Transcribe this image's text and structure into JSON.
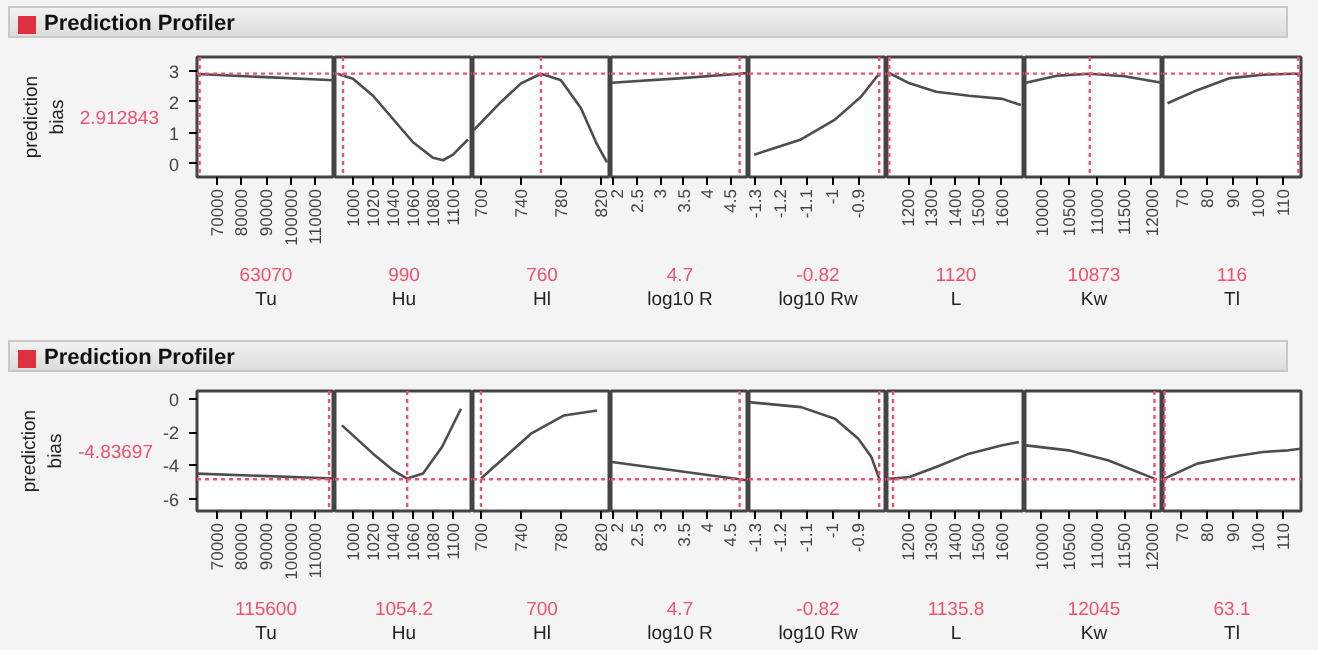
{
  "chart_data": [
    {
      "type": "line",
      "title": "Prediction Profiler",
      "ylabel": "prediction\nbias",
      "xlabel": "Tu",
      "color": "#4d4d4d",
      "x": [
        62000,
        90000,
        118000
      ],
      "values": [
        2.9,
        2.8,
        2.7
      ],
      "xlim": [
        62000,
        118000
      ],
      "xticks": [
        70000,
        80000,
        90000,
        100000,
        110000
      ],
      "ylim": [
        -0.42,
        3.45
      ],
      "yticks": [
        0,
        1,
        2,
        3
      ],
      "ref_lines": [
        {
          "axis": "y",
          "value": 2.912843,
          "label": "2.912843",
          "color": "#f0506e",
          "line_style": "dotted"
        },
        {
          "axis": "x",
          "value": 63070,
          "label": "63070",
          "color": "#f0506e",
          "line_style": "dotted"
        }
      ]
    },
    {
      "type": "line",
      "xlabel": "Hu",
      "color": "#4d4d4d",
      "x": [
        985,
        1000,
        1020,
        1040,
        1060,
        1080,
        1090,
        1100,
        1115
      ],
      "values": [
        2.9,
        2.75,
        2.2,
        1.45,
        0.7,
        0.2,
        0.12,
        0.3,
        0.79
      ],
      "xlim": [
        982,
        1120
      ],
      "xticks": [
        1000,
        1020,
        1040,
        1060,
        1080,
        1100
      ],
      "ylim": [
        -0.42,
        3.45
      ],
      "yticks": [
        0,
        1,
        2,
        3
      ],
      "tick_labels": "x",
      "ref_lines": [
        {
          "axis": "y",
          "value": 2.912843,
          "color": "#f0506e",
          "line_style": "dotted"
        },
        {
          "axis": "x",
          "value": 990,
          "label": "990",
          "color": "#f0506e",
          "line_style": "dotted"
        }
      ]
    },
    {
      "type": "line",
      "xlabel": "Hl",
      "color": "#4d4d4d",
      "x": [
        693,
        720,
        740,
        760,
        780,
        800,
        815,
        826
      ],
      "values": [
        1.1,
        2.0,
        2.6,
        2.91,
        2.7,
        1.8,
        0.7,
        0.05
      ],
      "xlim": [
        692,
        830
      ],
      "xticks": [
        700,
        740,
        780,
        820
      ],
      "ylim": [
        -0.42,
        3.45
      ],
      "yticks": [
        0,
        1,
        2,
        3
      ],
      "tick_labels": "x",
      "ref_lines": [
        {
          "axis": "y",
          "value": 2.912843,
          "color": "#f0506e",
          "line_style": "dotted"
        },
        {
          "axis": "x",
          "value": 760,
          "label": "760",
          "color": "#f0506e",
          "line_style": "dotted"
        }
      ]
    },
    {
      "type": "line",
      "xlabel": "log10 R",
      "color": "#4d4d4d",
      "x": [
        1.96,
        3.4,
        4.7,
        4.85
      ],
      "values": [
        2.62,
        2.76,
        2.91,
        2.93
      ],
      "xlim": [
        1.95,
        4.9
      ],
      "xticks": [
        2,
        2.5,
        3,
        3.5,
        4,
        4.5
      ],
      "ylim": [
        -0.42,
        3.45
      ],
      "yticks": [
        0,
        1,
        2,
        3
      ],
      "tick_labels": "x",
      "ref_lines": [
        {
          "axis": "y",
          "value": 2.912843,
          "color": "#f0506e",
          "line_style": "dotted"
        },
        {
          "axis": "x",
          "value": 4.7,
          "label": "4.7",
          "color": "#f0506e",
          "line_style": "dotted"
        }
      ]
    },
    {
      "type": "line",
      "xlabel": "log10 Rw",
      "color": "#4d4d4d",
      "x": [
        -1.3,
        -1.12,
        -0.99,
        -0.89,
        -0.82
      ],
      "values": [
        0.3,
        0.79,
        1.43,
        2.17,
        2.91
      ],
      "xlim": [
        -1.32,
        -0.79
      ],
      "xticks": [
        -1.3,
        -1.2,
        -1.1,
        -1,
        -0.9
      ],
      "ylim": [
        -0.42,
        3.45
      ],
      "yticks": [
        0,
        1,
        2,
        3
      ],
      "tick_labels": "x",
      "ref_lines": [
        {
          "axis": "y",
          "value": 2.912843,
          "color": "#f0506e",
          "line_style": "dotted"
        },
        {
          "axis": "x",
          "value": -0.82,
          "label": "-0.82",
          "color": "#f0506e",
          "line_style": "dotted"
        }
      ]
    },
    {
      "type": "line",
      "xlabel": "L",
      "color": "#4d4d4d",
      "x": [
        1115,
        1206,
        1320,
        1461,
        1603,
        1682
      ],
      "values": [
        2.95,
        2.6,
        2.33,
        2.2,
        2.1,
        1.9
      ],
      "xlim": [
        1110,
        1700
      ],
      "xticks": [
        1200,
        1300,
        1400,
        1500,
        1600
      ],
      "ylim": [
        -0.42,
        3.45
      ],
      "yticks": [
        0,
        1,
        2,
        3
      ],
      "tick_labels": "x",
      "ref_lines": [
        {
          "axis": "y",
          "value": 2.912843,
          "color": "#f0506e",
          "line_style": "dotted"
        },
        {
          "axis": "x",
          "value": 1120,
          "label": "1120",
          "color": "#f0506e",
          "line_style": "dotted"
        }
      ]
    },
    {
      "type": "line",
      "xlabel": "Kw",
      "color": "#4d4d4d",
      "x": [
        9714,
        10300,
        10873,
        11500,
        12178
      ],
      "values": [
        2.62,
        2.85,
        2.91,
        2.83,
        2.62
      ],
      "xlim": [
        9700,
        12200
      ],
      "xticks": [
        10000,
        10500,
        11000,
        11500,
        12000
      ],
      "ylim": [
        -0.42,
        3.45
      ],
      "yticks": [
        0,
        1,
        2,
        3
      ],
      "tick_labels": "x",
      "ref_lines": [
        {
          "axis": "y",
          "value": 2.912843,
          "color": "#f0506e",
          "line_style": "dotted"
        },
        {
          "axis": "x",
          "value": 10873,
          "label": "10873",
          "color": "#f0506e",
          "line_style": "dotted"
        }
      ]
    },
    {
      "type": "line",
      "xlabel": "Tl",
      "color": "#4d4d4d",
      "x": [
        64.3,
        76,
        89,
        102,
        114,
        116.5
      ],
      "values": [
        1.96,
        2.38,
        2.77,
        2.88,
        2.91,
        2.91
      ],
      "xlim": [
        62.5,
        117
      ],
      "xticks": [
        70,
        80,
        90,
        100,
        110
      ],
      "ylim": [
        -0.42,
        3.45
      ],
      "yticks": [
        0,
        1,
        2,
        3
      ],
      "tick_labels": "x",
      "ref_lines": [
        {
          "axis": "y",
          "value": 2.912843,
          "color": "#f0506e",
          "line_style": "dotted"
        },
        {
          "axis": "x",
          "value": 116,
          "label": "116",
          "color": "#f0506e",
          "line_style": "dotted"
        }
      ]
    },
    {
      "type": "line",
      "title": "Prediction Profiler",
      "ylabel": "prediction\nbias",
      "xlabel": "Tu",
      "color": "#4d4d4d",
      "x": [
        62000,
        118000
      ],
      "values": [
        -4.5,
        -4.8
      ],
      "xlim": [
        62000,
        118000
      ],
      "xticks": [
        70000,
        80000,
        90000,
        100000,
        110000
      ],
      "ylim": [
        -6.75,
        0.47
      ],
      "yticks": [
        -6,
        -4,
        -2,
        0
      ],
      "ref_lines": [
        {
          "axis": "y",
          "value": -4.83697,
          "label": "-4.83697",
          "color": "#f0506e",
          "line_style": "dotted"
        },
        {
          "axis": "x",
          "value": 115600,
          "label": "115600",
          "color": "#f0506e",
          "line_style": "dotted"
        }
      ]
    },
    {
      "type": "line",
      "xlabel": "Hu",
      "color": "#4d4d4d",
      "x": [
        989,
        1020,
        1040,
        1054.2,
        1070,
        1089,
        1108
      ],
      "values": [
        -1.6,
        -3.3,
        -4.3,
        -4.8,
        -4.5,
        -2.9,
        -0.6
      ],
      "xlim": [
        982,
        1120
      ],
      "xticks": [
        1000,
        1020,
        1040,
        1060,
        1080,
        1100
      ],
      "ylim": [
        -6.75,
        0.47
      ],
      "yticks": [
        -6,
        -4,
        -2,
        0
      ],
      "tick_labels": "x",
      "ref_lines": [
        {
          "axis": "y",
          "value": -4.83697,
          "color": "#f0506e",
          "line_style": "dotted"
        },
        {
          "axis": "x",
          "value": 1054.2,
          "label": "1054.2",
          "color": "#f0506e",
          "line_style": "dotted"
        }
      ]
    },
    {
      "type": "line",
      "xlabel": "Hl",
      "color": "#4d4d4d",
      "x": [
        700,
        724,
        750,
        783,
        816
      ],
      "values": [
        -4.8,
        -3.5,
        -2.1,
        -1.0,
        -0.7
      ],
      "xlim": [
        692,
        830
      ],
      "xticks": [
        700,
        740,
        780,
        820
      ],
      "ylim": [
        -6.75,
        0.47
      ],
      "yticks": [
        -6,
        -4,
        -2,
        0
      ],
      "tick_labels": "x",
      "ref_lines": [
        {
          "axis": "y",
          "value": -4.83697,
          "color": "#f0506e",
          "line_style": "dotted"
        },
        {
          "axis": "x",
          "value": 700,
          "label": "700",
          "color": "#f0506e",
          "line_style": "dotted"
        }
      ]
    },
    {
      "type": "line",
      "xlabel": "log10 R",
      "color": "#4d4d4d",
      "x": [
        1.97,
        4.85
      ],
      "values": [
        -3.8,
        -4.9
      ],
      "xlim": [
        1.95,
        4.9
      ],
      "xticks": [
        2,
        2.5,
        3,
        3.5,
        4,
        4.5
      ],
      "ylim": [
        -6.75,
        0.47
      ],
      "yticks": [
        -6,
        -4,
        -2,
        0
      ],
      "tick_labels": "x",
      "ref_lines": [
        {
          "axis": "y",
          "value": -4.83697,
          "color": "#f0506e",
          "line_style": "dotted"
        },
        {
          "axis": "x",
          "value": 4.7,
          "label": "4.7",
          "color": "#f0506e",
          "line_style": "dotted"
        }
      ]
    },
    {
      "type": "line",
      "xlabel": "log10 Rw",
      "color": "#4d4d4d",
      "x": [
        -1.32,
        -1.12,
        -0.99,
        -0.9,
        -0.85,
        -0.82
      ],
      "values": [
        -0.2,
        -0.5,
        -1.2,
        -2.4,
        -3.5,
        -4.8
      ],
      "xlim": [
        -1.32,
        -0.79
      ],
      "xticks": [
        -1.3,
        -1.2,
        -1.1,
        -1,
        -0.9
      ],
      "ylim": [
        -6.75,
        0.47
      ],
      "yticks": [
        -6,
        -4,
        -2,
        0
      ],
      "tick_labels": "x",
      "ref_lines": [
        {
          "axis": "y",
          "value": -4.83697,
          "color": "#f0506e",
          "line_style": "dotted"
        },
        {
          "axis": "x",
          "value": -0.82,
          "label": "-0.82",
          "color": "#f0506e",
          "line_style": "dotted"
        }
      ]
    },
    {
      "type": "line",
      "xlabel": "L",
      "color": "#4d4d4d",
      "x": [
        1115,
        1135.8,
        1206,
        1320,
        1461,
        1603,
        1674
      ],
      "values": [
        -4.8,
        -4.8,
        -4.7,
        -4.1,
        -3.3,
        -2.8,
        -2.6
      ],
      "xlim": [
        1110,
        1700
      ],
      "xticks": [
        1200,
        1300,
        1400,
        1500,
        1600
      ],
      "ylim": [
        -6.75,
        0.47
      ],
      "yticks": [
        -6,
        -4,
        -2,
        0
      ],
      "tick_labels": "x",
      "ref_lines": [
        {
          "axis": "y",
          "value": -4.83697,
          "color": "#f0506e",
          "line_style": "dotted"
        },
        {
          "axis": "x",
          "value": 1135.8,
          "label": "1135.8",
          "color": "#f0506e",
          "line_style": "dotted"
        }
      ]
    },
    {
      "type": "line",
      "xlabel": "Kw",
      "color": "#4d4d4d",
      "x": [
        9714,
        10488,
        11202,
        12045
      ],
      "values": [
        -2.8,
        -3.1,
        -3.7,
        -4.8
      ],
      "xlim": [
        9700,
        12200
      ],
      "xticks": [
        10000,
        10500,
        11000,
        11500,
        12000
      ],
      "ylim": [
        -6.75,
        0.47
      ],
      "yticks": [
        -6,
        -4,
        -2,
        0
      ],
      "tick_labels": "x",
      "ref_lines": [
        {
          "axis": "y",
          "value": -4.83697,
          "color": "#f0506e",
          "line_style": "dotted"
        },
        {
          "axis": "x",
          "value": 12045,
          "label": "12045",
          "color": "#f0506e",
          "line_style": "dotted"
        }
      ]
    },
    {
      "type": "line",
      "xlabel": "Tl",
      "color": "#4d4d4d",
      "x": [
        63.1,
        76,
        89,
        102,
        112,
        117
      ],
      "values": [
        -4.8,
        -3.9,
        -3.5,
        -3.2,
        -3.1,
        -3.0
      ],
      "xlim": [
        62.5,
        117
      ],
      "xticks": [
        70,
        80,
        90,
        100,
        110
      ],
      "ylim": [
        -6.75,
        0.47
      ],
      "yticks": [
        -6,
        -4,
        -2,
        0
      ],
      "tick_labels": "x",
      "ref_lines": [
        {
          "axis": "y",
          "value": -4.83697,
          "color": "#f0506e",
          "line_style": "dotted"
        },
        {
          "axis": "x",
          "value": 63.1,
          "label": "63.1",
          "color": "#f0506e",
          "line_style": "dotted"
        }
      ]
    }
  ]
}
